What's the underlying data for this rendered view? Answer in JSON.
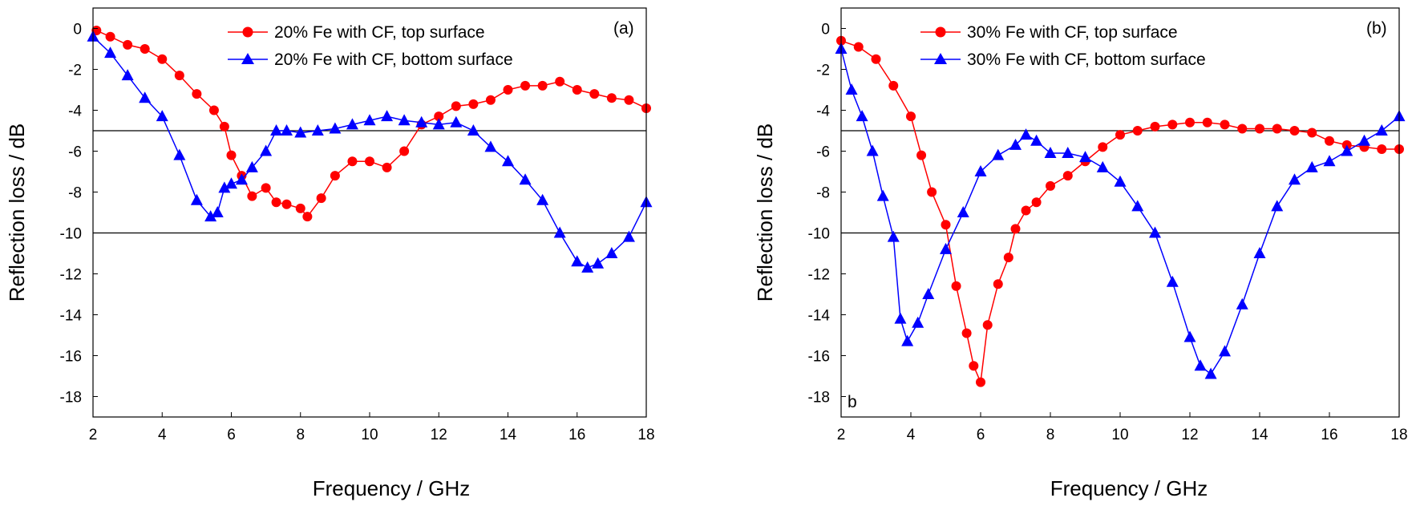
{
  "chart_data": [
    {
      "type": "line",
      "panel_label": "(a)",
      "xlabel": "Frequency / GHz",
      "ylabel": "Reflection loss / dB",
      "xlim": [
        2,
        18
      ],
      "ylim": [
        -19,
        1
      ],
      "xticks": [
        2,
        4,
        6,
        8,
        10,
        12,
        14,
        16,
        18
      ],
      "yticks": [
        0,
        -2,
        -4,
        -6,
        -8,
        -10,
        -12,
        -14,
        -16,
        -18
      ],
      "reference_lines": [
        -5,
        -10
      ],
      "legend_position": "top",
      "series": [
        {
          "name": "20% Fe with CF, top surface",
          "color": "#ff0000",
          "marker": "circle",
          "x": [
            2.1,
            2.5,
            3.0,
            3.5,
            4.0,
            4.5,
            5.0,
            5.5,
            5.8,
            6.0,
            6.3,
            6.6,
            7.0,
            7.3,
            7.6,
            8.0,
            8.2,
            8.6,
            9.0,
            9.5,
            10.0,
            10.5,
            11.0,
            11.5,
            12.0,
            12.5,
            13.0,
            13.5,
            14.0,
            14.5,
            15.0,
            15.5,
            16.0,
            16.5,
            17.0,
            17.5,
            18.0
          ],
          "y": [
            -0.1,
            -0.4,
            -0.8,
            -1.0,
            -1.5,
            -2.3,
            -3.2,
            -4.0,
            -4.8,
            -6.2,
            -7.2,
            -8.2,
            -7.8,
            -8.5,
            -8.6,
            -8.8,
            -9.2,
            -8.3,
            -7.2,
            -6.5,
            -6.5,
            -6.8,
            -6.0,
            -4.7,
            -4.3,
            -3.8,
            -3.7,
            -3.5,
            -3.0,
            -2.8,
            -2.8,
            -2.6,
            -3.0,
            -3.2,
            -3.4,
            -3.5,
            -3.9
          ]
        },
        {
          "name": "20% Fe with CF, bottom surface",
          "color": "#0000ff",
          "marker": "triangle",
          "x": [
            2.0,
            2.5,
            3.0,
            3.5,
            4.0,
            4.5,
            5.0,
            5.4,
            5.6,
            5.8,
            6.0,
            6.3,
            6.6,
            7.0,
            7.3,
            7.6,
            8.0,
            8.5,
            9.0,
            9.5,
            10.0,
            10.5,
            11.0,
            11.5,
            12.0,
            12.5,
            13.0,
            13.5,
            14.0,
            14.5,
            15.0,
            15.5,
            16.0,
            16.3,
            16.6,
            17.0,
            17.5,
            18.0
          ],
          "y": [
            -0.4,
            -1.2,
            -2.3,
            -3.4,
            -4.3,
            -6.2,
            -8.4,
            -9.2,
            -9.0,
            -7.8,
            -7.6,
            -7.4,
            -6.8,
            -6.0,
            -5.0,
            -5.0,
            -5.1,
            -5.0,
            -4.9,
            -4.7,
            -4.5,
            -4.3,
            -4.5,
            -4.6,
            -4.7,
            -4.6,
            -5.0,
            -5.8,
            -6.5,
            -7.4,
            -8.4,
            -10.0,
            -11.4,
            -11.7,
            -11.5,
            -11.0,
            -10.2,
            -8.5
          ]
        }
      ]
    },
    {
      "type": "line",
      "panel_label": "(b)",
      "corner_label": "b",
      "xlabel": "Frequency / GHz",
      "ylabel": "Reflection loss / dB",
      "xlim": [
        2,
        18
      ],
      "ylim": [
        -19,
        1
      ],
      "xticks": [
        2,
        4,
        6,
        8,
        10,
        12,
        14,
        16,
        18
      ],
      "yticks": [
        0,
        -2,
        -4,
        -6,
        -8,
        -10,
        -12,
        -14,
        -16,
        -18
      ],
      "reference_lines": [
        -5,
        -10
      ],
      "legend_position": "top",
      "series": [
        {
          "name": "30% Fe with CF, top surface",
          "color": "#ff0000",
          "marker": "circle",
          "x": [
            2.0,
            2.5,
            3.0,
            3.5,
            4.0,
            4.3,
            4.6,
            5.0,
            5.3,
            5.6,
            5.8,
            6.0,
            6.2,
            6.5,
            6.8,
            7.0,
            7.3,
            7.6,
            8.0,
            8.5,
            9.0,
            9.5,
            10.0,
            10.5,
            11.0,
            11.5,
            12.0,
            12.5,
            13.0,
            13.5,
            14.0,
            14.5,
            15.0,
            15.5,
            16.0,
            16.5,
            17.0,
            17.5,
            18.0
          ],
          "y": [
            -0.6,
            -0.9,
            -1.5,
            -2.8,
            -4.3,
            -6.2,
            -8.0,
            -9.6,
            -12.6,
            -14.9,
            -16.5,
            -17.3,
            -14.5,
            -12.5,
            -11.2,
            -9.8,
            -8.9,
            -8.5,
            -7.7,
            -7.2,
            -6.5,
            -5.8,
            -5.2,
            -5.0,
            -4.8,
            -4.7,
            -4.6,
            -4.6,
            -4.7,
            -4.9,
            -4.9,
            -4.9,
            -5.0,
            -5.1,
            -5.5,
            -5.7,
            -5.8,
            -5.9,
            -5.9
          ]
        },
        {
          "name": "30% Fe with CF, bottom surface",
          "color": "#0000ff",
          "marker": "triangle",
          "x": [
            2.0,
            2.3,
            2.6,
            2.9,
            3.2,
            3.5,
            3.7,
            3.9,
            4.2,
            4.5,
            5.0,
            5.5,
            6.0,
            6.5,
            7.0,
            7.3,
            7.6,
            8.0,
            8.5,
            9.0,
            9.5,
            10.0,
            10.5,
            11.0,
            11.5,
            12.0,
            12.3,
            12.6,
            13.0,
            13.5,
            14.0,
            14.5,
            15.0,
            15.5,
            16.0,
            16.5,
            17.0,
            17.5,
            18.0
          ],
          "y": [
            -1.0,
            -3.0,
            -4.3,
            -6.0,
            -8.2,
            -10.2,
            -14.2,
            -15.3,
            -14.4,
            -13.0,
            -10.8,
            -9.0,
            -7.0,
            -6.2,
            -5.7,
            -5.2,
            -5.5,
            -6.1,
            -6.1,
            -6.3,
            -6.8,
            -7.5,
            -8.7,
            -10.0,
            -12.4,
            -15.1,
            -16.5,
            -16.9,
            -15.8,
            -13.5,
            -11.0,
            -8.7,
            -7.4,
            -6.8,
            -6.5,
            -6.0,
            -5.5,
            -5.0,
            -4.3
          ]
        }
      ]
    }
  ]
}
